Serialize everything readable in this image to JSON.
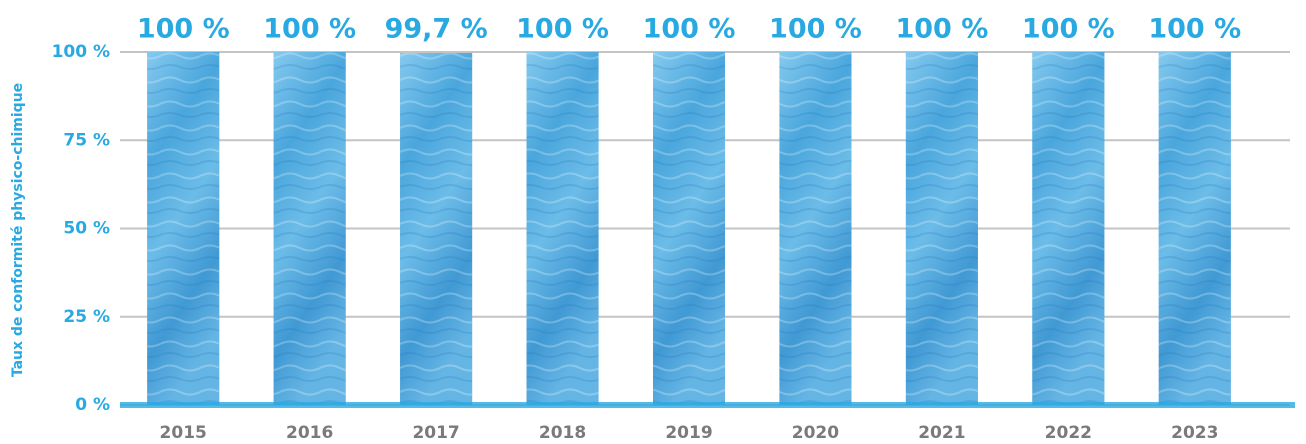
{
  "chart_data": {
    "type": "bar",
    "y_axis_label": "Taux de conformité physico-chimique",
    "categories": [
      "2015",
      "2016",
      "2017",
      "2018",
      "2019",
      "2020",
      "2021",
      "2022",
      "2023"
    ],
    "values": [
      100,
      100,
      99.7,
      100,
      100,
      100,
      100,
      100,
      100
    ],
    "value_labels": [
      "100 %",
      "100 %",
      "99,7 %",
      "100 %",
      "100 %",
      "100 %",
      "100 %",
      "100 %",
      "100 %"
    ],
    "color": "#4aa6dc",
    "ylim": [
      0,
      100
    ],
    "yticks": [
      {
        "value": 0,
        "label": "0 %"
      },
      {
        "value": 25,
        "label": "25 %"
      },
      {
        "value": 50,
        "label": "50 %"
      },
      {
        "value": 75,
        "label": "75 %"
      },
      {
        "value": 100,
        "label": "100 %"
      }
    ],
    "grid": true
  }
}
